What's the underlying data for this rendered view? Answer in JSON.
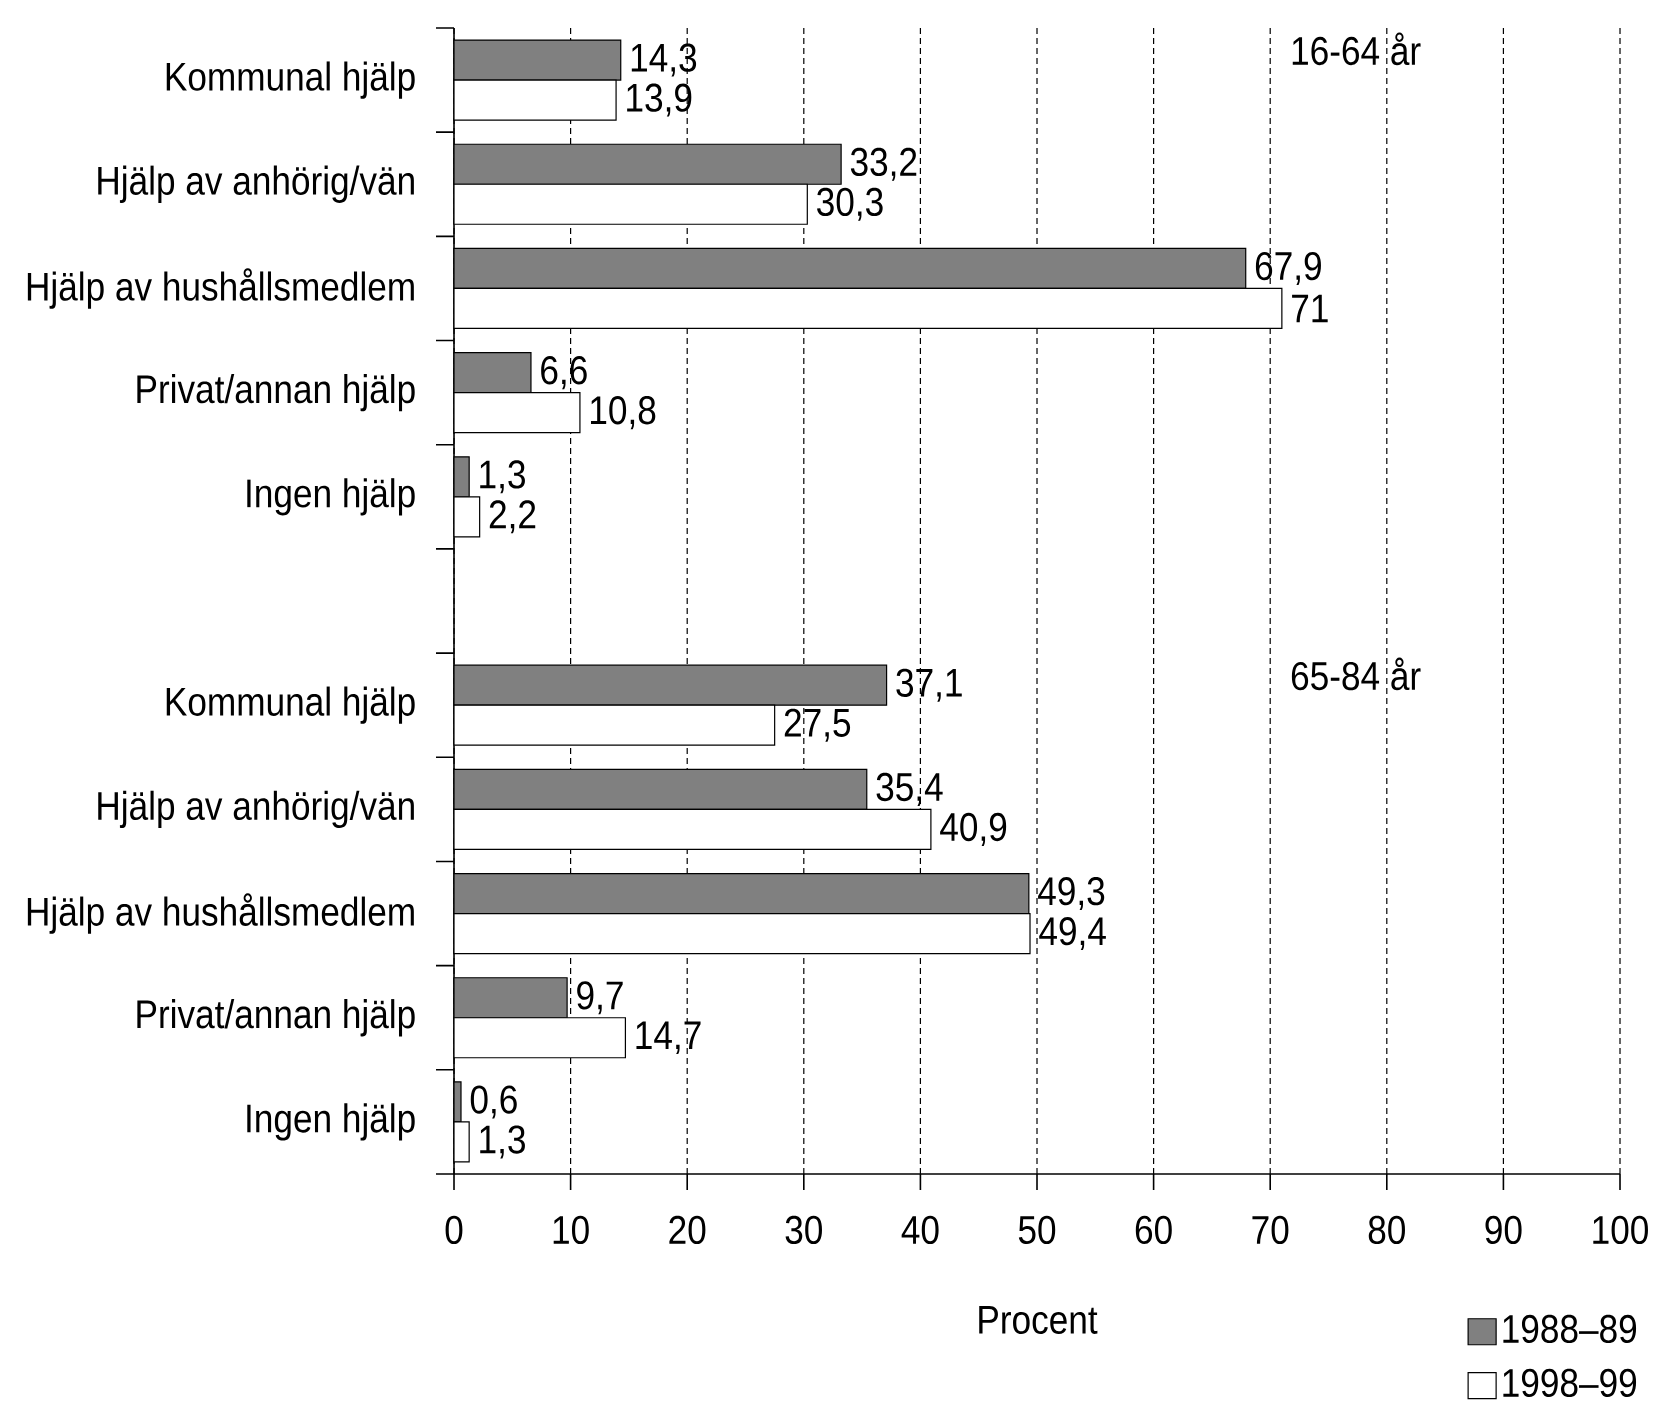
{
  "chart_data": {
    "type": "bar",
    "orientation": "horizontal",
    "xlabel": "Procent",
    "categories": [
      "Kommunal hjälp",
      "Hjälp av anhörig/vän",
      "Hjälp av hushållsmedlem",
      "Privat/annan hjälp",
      "Ingen hjälp",
      null,
      "Kommunal hjälp",
      "Hjälp av anhörig/vän",
      "Hjälp av hushållsmedlem",
      "Privat/annan hjälp",
      "Ingen hjälp"
    ],
    "series": [
      {
        "name": "1988–89",
        "color": "#808080",
        "values": [
          14.3,
          33.2,
          67.9,
          6.6,
          1.3,
          null,
          37.1,
          35.4,
          49.3,
          9.7,
          0.6
        ],
        "value_labels": [
          "14,3",
          "33,2",
          "67,9",
          "6,6",
          "1,3",
          null,
          "37,1",
          "35,4",
          "49,3",
          "9,7",
          "0,6"
        ]
      },
      {
        "name": "1998–99",
        "color": "#ffffff",
        "values": [
          13.9,
          30.3,
          71,
          10.8,
          2.2,
          null,
          27.5,
          40.9,
          49.4,
          14.7,
          1.3
        ],
        "value_labels": [
          "13,9",
          "30,3",
          "71",
          "10,8",
          "2,2",
          null,
          "27,5",
          "40,9",
          "49,4",
          "14,7",
          "1,3"
        ]
      }
    ],
    "xlim": [
      0,
      100
    ],
    "xticks": [
      0,
      10,
      20,
      30,
      40,
      50,
      60,
      70,
      80,
      90,
      100
    ],
    "grid": "x",
    "legend": "bottom right",
    "annotations": [
      "16-64 år",
      "65-84 år"
    ]
  }
}
